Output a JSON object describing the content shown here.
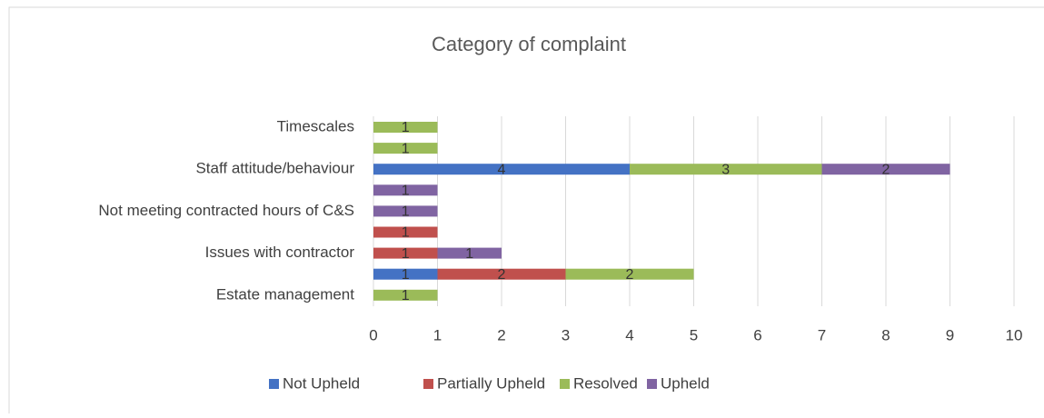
{
  "chart_data": {
    "type": "stacked-barh",
    "title": "Category of complaint",
    "categories": [
      "Timescales",
      null,
      "Staff attitude/behaviour",
      null,
      "Not meeting contracted hours of C&S",
      null,
      "Issues with contractor",
      null,
      "Estate management"
    ],
    "series": [
      {
        "name": "Not Upheld",
        "color": "#4472c4",
        "values": [
          null,
          null,
          4,
          null,
          null,
          null,
          null,
          1,
          null
        ]
      },
      {
        "name": "Partially Upheld",
        "color": "#c0504d",
        "values": [
          null,
          null,
          null,
          null,
          null,
          1,
          1,
          2,
          null
        ]
      },
      {
        "name": "Resolved",
        "color": "#9bbb59",
        "values": [
          1,
          1,
          3,
          null,
          null,
          null,
          null,
          2,
          1
        ]
      },
      {
        "name": "Upheld",
        "color": "#8064a2",
        "values": [
          null,
          null,
          2,
          1,
          1,
          null,
          1,
          null,
          null
        ]
      }
    ],
    "xlim": [
      0,
      10
    ],
    "xticks": [
      0,
      1,
      2,
      3,
      4,
      5,
      6,
      7,
      8,
      9,
      10
    ],
    "grid": true,
    "legend": "bottom"
  }
}
